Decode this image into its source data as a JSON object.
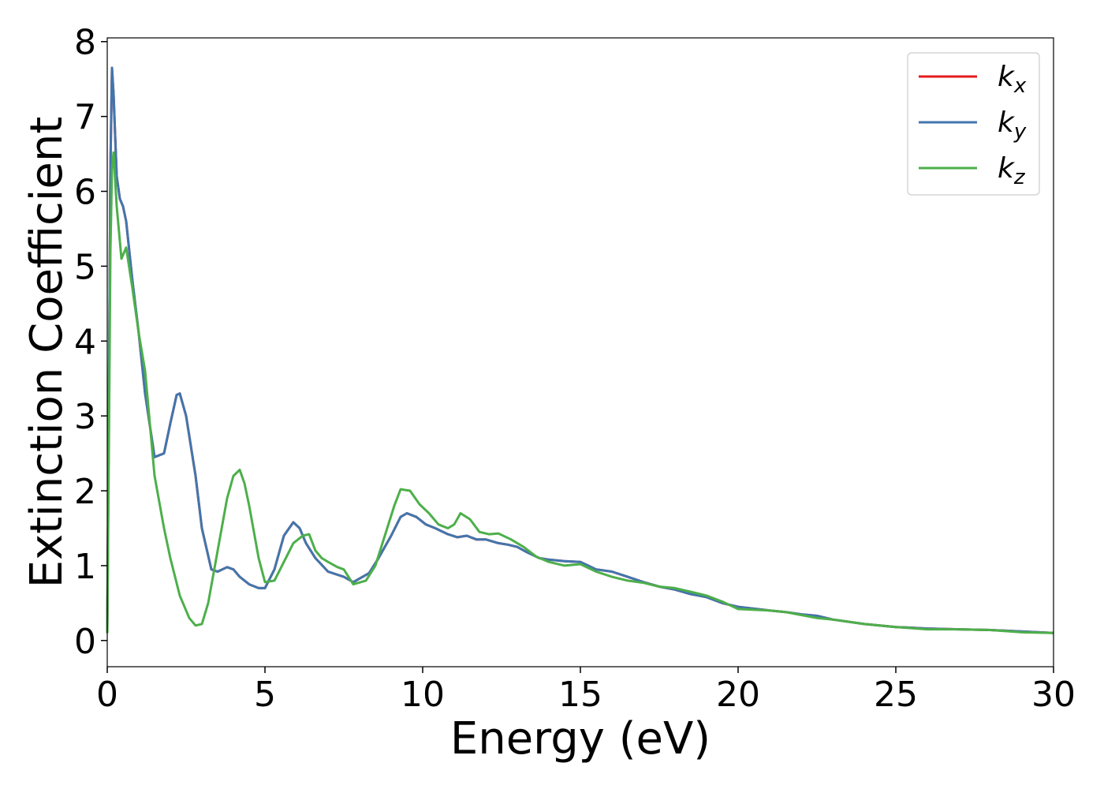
{
  "chart_data": {
    "type": "line",
    "xlabel": "Energy (eV)",
    "ylabel": "Extinction Coefficient",
    "xlim": [
      0,
      30
    ],
    "ylim": [
      -0.35,
      8.05
    ],
    "xticks": [
      "0",
      "5",
      "10",
      "15",
      "20",
      "25",
      "30"
    ],
    "yticks": [
      "0",
      "1",
      "2",
      "3",
      "4",
      "5",
      "6",
      "7",
      "8"
    ],
    "grid": false,
    "legend_position": "top-right",
    "series": [
      {
        "name": "kx",
        "color": "#e41a1c",
        "x": [
          0.0,
          0.05,
          0.1,
          0.15,
          0.2,
          0.3,
          0.4,
          0.5,
          0.6,
          0.8,
          1.0,
          1.2,
          1.5,
          1.8,
          2.0,
          2.2,
          2.3,
          2.5,
          2.8,
          3.0,
          3.3,
          3.5,
          3.8,
          4.0,
          4.2,
          4.5,
          4.8,
          5.0,
          5.3,
          5.6,
          5.9,
          6.1,
          6.3,
          6.6,
          7.0,
          7.5,
          7.8,
          8.3,
          8.6,
          9.0,
          9.3,
          9.5,
          9.8,
          10.1,
          10.4,
          10.8,
          11.1,
          11.4,
          11.7,
          12.0,
          12.4,
          12.7,
          13.0,
          13.3,
          13.7,
          14.0,
          14.5,
          15.0,
          15.5,
          16.0,
          16.5,
          17.0,
          17.5,
          18.0,
          18.5,
          19.0,
          19.5,
          20.0,
          21.0,
          21.5,
          22.0,
          22.5,
          23.0,
          24.0,
          25.0,
          26.0,
          27.0,
          28.0,
          29.0,
          30.0
        ],
        "y": [
          0.1,
          3.0,
          6.3,
          7.65,
          7.3,
          6.2,
          5.9,
          5.8,
          5.6,
          4.8,
          4.1,
          3.3,
          2.45,
          2.5,
          2.9,
          3.28,
          3.3,
          3.0,
          2.2,
          1.5,
          0.95,
          0.92,
          0.98,
          0.95,
          0.85,
          0.75,
          0.7,
          0.7,
          0.95,
          1.4,
          1.58,
          1.5,
          1.3,
          1.1,
          0.92,
          0.85,
          0.78,
          0.9,
          1.1,
          1.4,
          1.65,
          1.7,
          1.65,
          1.55,
          1.5,
          1.42,
          1.38,
          1.4,
          1.35,
          1.35,
          1.3,
          1.28,
          1.25,
          1.18,
          1.1,
          1.08,
          1.06,
          1.05,
          0.95,
          0.92,
          0.85,
          0.78,
          0.72,
          0.68,
          0.62,
          0.58,
          0.5,
          0.45,
          0.4,
          0.38,
          0.35,
          0.33,
          0.28,
          0.22,
          0.18,
          0.16,
          0.15,
          0.14,
          0.12,
          0.1
        ]
      },
      {
        "name": "ky",
        "color": "#4176ad",
        "x": [
          0.0,
          0.05,
          0.1,
          0.15,
          0.2,
          0.3,
          0.4,
          0.5,
          0.6,
          0.8,
          1.0,
          1.2,
          1.5,
          1.8,
          2.0,
          2.2,
          2.3,
          2.5,
          2.8,
          3.0,
          3.3,
          3.5,
          3.8,
          4.0,
          4.2,
          4.5,
          4.8,
          5.0,
          5.3,
          5.6,
          5.9,
          6.1,
          6.3,
          6.6,
          7.0,
          7.5,
          7.8,
          8.3,
          8.6,
          9.0,
          9.3,
          9.5,
          9.8,
          10.1,
          10.4,
          10.8,
          11.1,
          11.4,
          11.7,
          12.0,
          12.4,
          12.7,
          13.0,
          13.3,
          13.7,
          14.0,
          14.5,
          15.0,
          15.5,
          16.0,
          16.5,
          17.0,
          17.5,
          18.0,
          18.5,
          19.0,
          19.5,
          20.0,
          21.0,
          21.5,
          22.0,
          22.5,
          23.0,
          24.0,
          25.0,
          26.0,
          27.0,
          28.0,
          29.0,
          30.0
        ],
        "y": [
          0.1,
          3.0,
          6.3,
          7.65,
          7.3,
          6.2,
          5.9,
          5.8,
          5.6,
          4.8,
          4.1,
          3.3,
          2.45,
          2.5,
          2.9,
          3.28,
          3.3,
          3.0,
          2.2,
          1.5,
          0.95,
          0.92,
          0.98,
          0.95,
          0.85,
          0.75,
          0.7,
          0.7,
          0.95,
          1.4,
          1.58,
          1.5,
          1.3,
          1.1,
          0.92,
          0.85,
          0.78,
          0.9,
          1.1,
          1.4,
          1.65,
          1.7,
          1.65,
          1.55,
          1.5,
          1.42,
          1.38,
          1.4,
          1.35,
          1.35,
          1.3,
          1.28,
          1.25,
          1.18,
          1.1,
          1.08,
          1.06,
          1.05,
          0.95,
          0.92,
          0.85,
          0.78,
          0.72,
          0.68,
          0.62,
          0.58,
          0.5,
          0.45,
          0.4,
          0.38,
          0.35,
          0.33,
          0.28,
          0.22,
          0.18,
          0.16,
          0.15,
          0.14,
          0.12,
          0.1
        ]
      },
      {
        "name": "kz",
        "color": "#4daf4a",
        "x": [
          0.0,
          0.05,
          0.1,
          0.15,
          0.2,
          0.3,
          0.45,
          0.6,
          0.8,
          1.0,
          1.2,
          1.5,
          1.8,
          2.0,
          2.3,
          2.6,
          2.8,
          3.0,
          3.2,
          3.5,
          3.8,
          4.0,
          4.2,
          4.35,
          4.5,
          4.8,
          5.0,
          5.3,
          5.6,
          5.9,
          6.2,
          6.4,
          6.6,
          6.8,
          7.0,
          7.3,
          7.5,
          7.8,
          8.2,
          8.5,
          8.8,
          9.1,
          9.3,
          9.6,
          9.9,
          10.2,
          10.5,
          10.8,
          11.0,
          11.2,
          11.5,
          11.8,
          12.1,
          12.4,
          12.8,
          13.2,
          13.6,
          14.0,
          14.5,
          15.0,
          15.5,
          16.0,
          16.5,
          17.0,
          17.5,
          18.0,
          18.5,
          19.0,
          19.5,
          20.0,
          21.0,
          21.5,
          22.0,
          22.5,
          23.0,
          24.0,
          25.0,
          26.0,
          27.0,
          28.0,
          29.0,
          30.0
        ],
        "y": [
          0.1,
          2.5,
          5.2,
          6.3,
          6.52,
          5.8,
          5.1,
          5.25,
          4.7,
          4.1,
          3.6,
          2.2,
          1.5,
          1.1,
          0.6,
          0.3,
          0.2,
          0.22,
          0.5,
          1.2,
          1.9,
          2.2,
          2.28,
          2.1,
          1.8,
          1.1,
          0.78,
          0.8,
          1.05,
          1.3,
          1.4,
          1.42,
          1.2,
          1.1,
          1.05,
          0.98,
          0.95,
          0.75,
          0.8,
          1.0,
          1.4,
          1.8,
          2.02,
          2.0,
          1.82,
          1.7,
          1.55,
          1.5,
          1.55,
          1.7,
          1.62,
          1.45,
          1.42,
          1.43,
          1.35,
          1.25,
          1.12,
          1.05,
          1.0,
          1.02,
          0.92,
          0.85,
          0.8,
          0.77,
          0.72,
          0.7,
          0.65,
          0.6,
          0.52,
          0.42,
          0.4,
          0.38,
          0.34,
          0.3,
          0.28,
          0.22,
          0.18,
          0.15,
          0.15,
          0.14,
          0.11,
          0.1
        ]
      }
    ]
  }
}
